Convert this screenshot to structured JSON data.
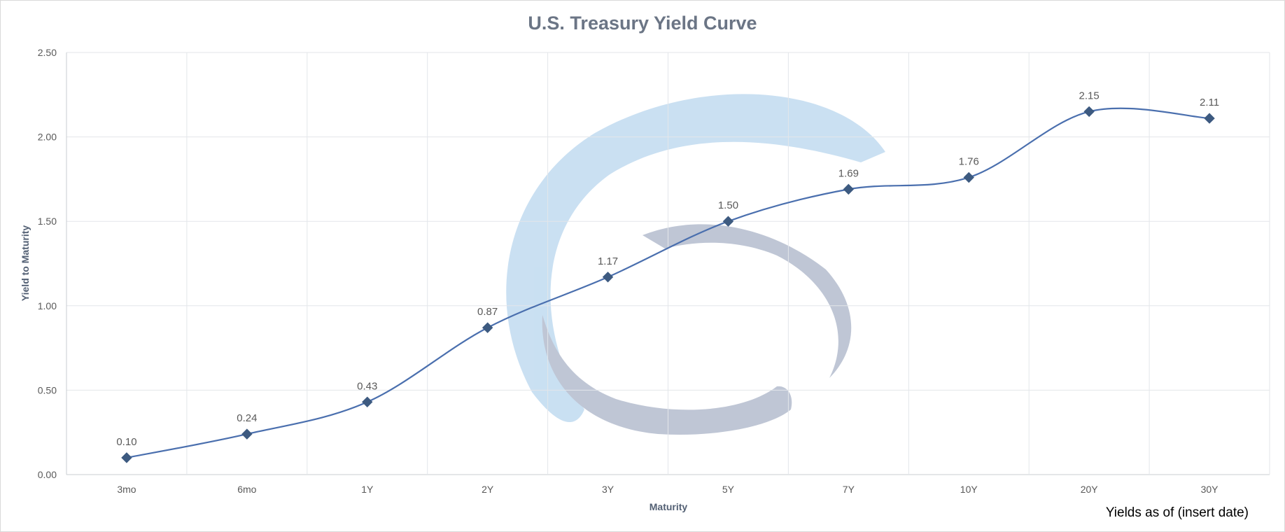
{
  "chart_data": {
    "type": "line",
    "title": "U.S. Treasury Yield Curve",
    "xlabel": "Maturity",
    "ylabel": "Yield to Maturity",
    "categories": [
      "3mo",
      "6mo",
      "1Y",
      "2Y",
      "3Y",
      "5Y",
      "7Y",
      "10Y",
      "20Y",
      "30Y"
    ],
    "values": [
      0.1,
      0.24,
      0.43,
      0.87,
      1.17,
      1.5,
      1.69,
      1.76,
      2.15,
      2.11
    ],
    "data_labels": [
      "0.10",
      "0.24",
      "0.43",
      "0.87",
      "1.17",
      "1.50",
      "1.69",
      "1.76",
      "2.15",
      "2.11"
    ],
    "ylim": [
      0,
      2.5
    ],
    "yticks": [
      "0.00",
      "0.50",
      "1.00",
      "1.50",
      "2.00",
      "2.50"
    ],
    "grid": true,
    "smooth": true,
    "marker": "diamond",
    "line_color": "#4a6fae",
    "marker_color": "#3d5a80",
    "footnote": "Yields as of (insert date)"
  },
  "watermark": {
    "type": "logo",
    "colors": [
      "#b8d6ee",
      "#aab4c8"
    ]
  }
}
